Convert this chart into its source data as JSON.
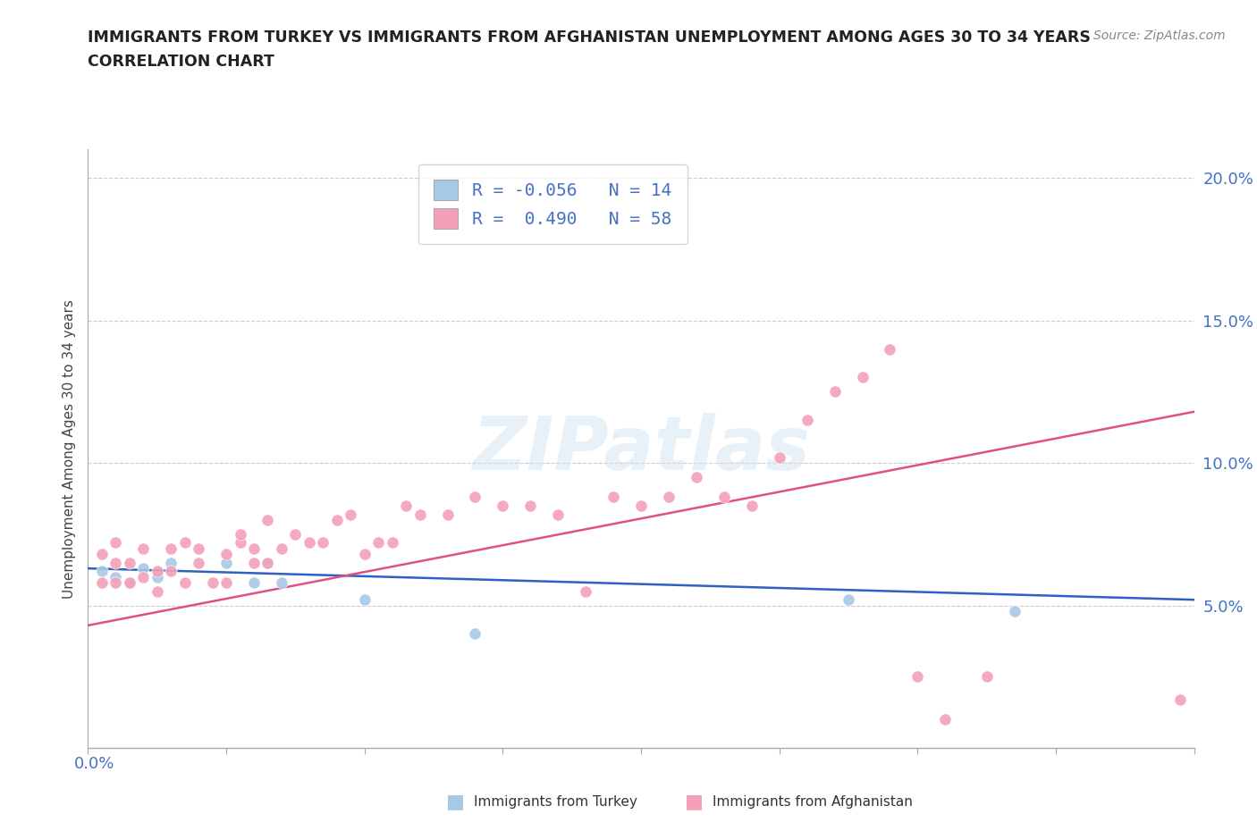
{
  "title_line1": "IMMIGRANTS FROM TURKEY VS IMMIGRANTS FROM AFGHANISTAN UNEMPLOYMENT AMONG AGES 30 TO 34 YEARS",
  "title_line2": "CORRELATION CHART",
  "source": "Source: ZipAtlas.com",
  "ylabel": "Unemployment Among Ages 30 to 34 years",
  "xlim": [
    0.0,
    0.08
  ],
  "ylim": [
    0.0,
    0.21
  ],
  "yticks": [
    0.05,
    0.1,
    0.15,
    0.2
  ],
  "ytick_labels": [
    "5.0%",
    "10.0%",
    "15.0%",
    "20.0%"
  ],
  "xtick_positions": [
    0.0,
    0.01,
    0.02,
    0.03,
    0.04,
    0.05,
    0.06,
    0.07,
    0.08
  ],
  "color_turkey": "#a8c8e8",
  "color_afghanistan": "#f4a0b8",
  "color_trend_turkey": "#3060c0",
  "color_trend_afghanistan": "#e05080",
  "color_axis_labels": "#4472c4",
  "R_turkey": -0.056,
  "N_turkey": 14,
  "R_afghanistan": 0.49,
  "N_afghanistan": 58,
  "turkey_x": [
    0.001,
    0.002,
    0.003,
    0.004,
    0.005,
    0.006,
    0.01,
    0.012,
    0.013,
    0.014,
    0.02,
    0.028,
    0.055,
    0.067
  ],
  "turkey_y": [
    0.062,
    0.06,
    0.058,
    0.063,
    0.06,
    0.065,
    0.065,
    0.058,
    0.065,
    0.058,
    0.052,
    0.04,
    0.052,
    0.048
  ],
  "afghanistan_x": [
    0.001,
    0.001,
    0.002,
    0.002,
    0.002,
    0.003,
    0.003,
    0.004,
    0.004,
    0.005,
    0.005,
    0.006,
    0.006,
    0.007,
    0.007,
    0.008,
    0.008,
    0.009,
    0.01,
    0.01,
    0.011,
    0.011,
    0.012,
    0.012,
    0.013,
    0.013,
    0.014,
    0.015,
    0.016,
    0.017,
    0.018,
    0.019,
    0.02,
    0.021,
    0.022,
    0.023,
    0.024,
    0.026,
    0.028,
    0.03,
    0.032,
    0.034,
    0.036,
    0.038,
    0.04,
    0.042,
    0.044,
    0.046,
    0.048,
    0.05,
    0.052,
    0.054,
    0.056,
    0.058,
    0.06,
    0.062,
    0.065,
    0.079
  ],
  "afghanistan_y": [
    0.068,
    0.058,
    0.065,
    0.058,
    0.072,
    0.058,
    0.065,
    0.06,
    0.07,
    0.055,
    0.062,
    0.062,
    0.07,
    0.058,
    0.072,
    0.065,
    0.07,
    0.058,
    0.058,
    0.068,
    0.072,
    0.075,
    0.065,
    0.07,
    0.065,
    0.08,
    0.07,
    0.075,
    0.072,
    0.072,
    0.08,
    0.082,
    0.068,
    0.072,
    0.072,
    0.085,
    0.082,
    0.082,
    0.088,
    0.085,
    0.085,
    0.082,
    0.055,
    0.088,
    0.085,
    0.088,
    0.095,
    0.088,
    0.085,
    0.102,
    0.115,
    0.125,
    0.13,
    0.14,
    0.025,
    0.01,
    0.025,
    0.017
  ],
  "watermark_text": "ZIPatlas",
  "background_color": "#ffffff",
  "grid_color": "#cccccc",
  "trend_line_turkey_y0": 0.063,
  "trend_line_turkey_y1": 0.052,
  "trend_line_afg_y0": 0.043,
  "trend_line_afg_y1": 0.118
}
